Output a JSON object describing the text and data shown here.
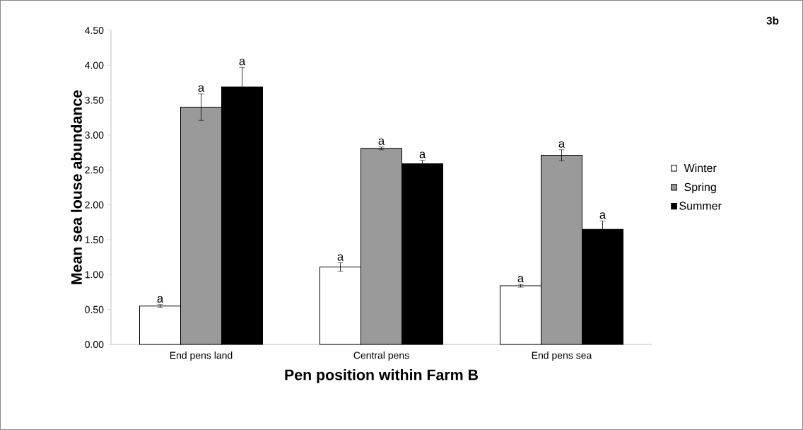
{
  "chart_data": {
    "type": "bar",
    "xlabel": "Pen position within Farm B",
    "ylabel": "Mean sea louse abundance",
    "annotations": [
      "3b"
    ],
    "categories": [
      "End pens land",
      "Central pens",
      "End pens sea"
    ],
    "series": [
      {
        "name": "Winter",
        "color": "#ffffff",
        "values": [
          0.55,
          1.11,
          0.84
        ],
        "errors": [
          0.02,
          0.06,
          0.02
        ],
        "value_labels": [
          "a",
          "a",
          "a"
        ]
      },
      {
        "name": "Spring",
        "color": "#9a9a9a",
        "values": [
          3.4,
          2.81,
          2.71
        ],
        "errors": [
          0.19,
          0.02,
          0.08
        ],
        "value_labels": [
          "a",
          "a",
          "a"
        ]
      },
      {
        "name": "Summer",
        "color": "#000000",
        "values": [
          3.69,
          2.59,
          1.65
        ],
        "errors": [
          0.28,
          0.05,
          0.12
        ],
        "value_labels": [
          "a",
          "a",
          "a"
        ]
      }
    ],
    "ylim": [
      0,
      4.5
    ],
    "yticks": [
      {
        "value": 0,
        "label": "0.00"
      },
      {
        "value": 0.5,
        "label": "0.50"
      },
      {
        "value": 1,
        "label": "1.00"
      },
      {
        "value": 1.5,
        "label": "1.50"
      },
      {
        "value": 2,
        "label": "2.00"
      },
      {
        "value": 2.5,
        "label": "2.50"
      },
      {
        "value": 3,
        "label": "3.00"
      },
      {
        "value": 3.5,
        "label": "3.50"
      },
      {
        "value": 4,
        "label": "4.00"
      },
      {
        "value": 4.5,
        "label": "4.50"
      }
    ],
    "grid": false,
    "legend": "right"
  }
}
